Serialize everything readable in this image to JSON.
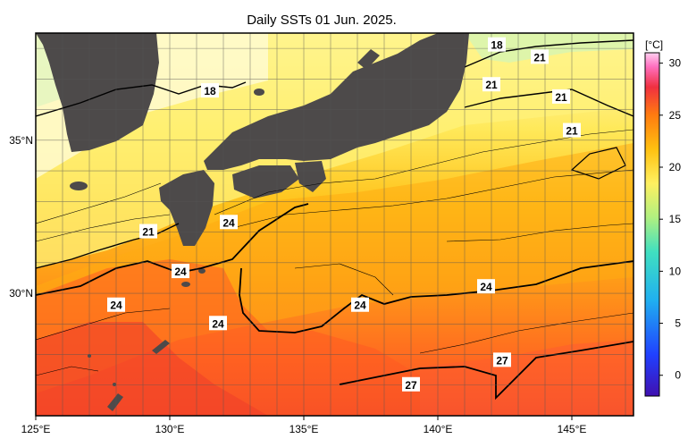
{
  "title": "Daily SSTs 01 Jun. 2025.",
  "colorbar": {
    "unit": "[°C]",
    "min": -2,
    "max": 31,
    "ticks": [
      "30",
      "25",
      "20",
      "15",
      "10",
      "5",
      "0"
    ],
    "tick_values": [
      30,
      25,
      20,
      15,
      10,
      5,
      0
    ]
  },
  "axes": {
    "lon_labels": [
      "125°E",
      "130°E",
      "135°E",
      "140°E",
      "145°E"
    ],
    "lon_values": [
      125,
      130,
      135,
      140,
      145
    ],
    "lat_labels": [
      "35°N",
      "30°N"
    ],
    "lat_values": [
      35,
      30
    ],
    "lon_range": [
      125,
      147.3
    ],
    "lat_range": [
      26,
      38.5
    ]
  },
  "isotherm_labels": [
    {
      "text": "18",
      "lon": 131.5,
      "lat": 36.6
    },
    {
      "text": "18",
      "lon": 142.2,
      "lat": 38.1
    },
    {
      "text": "21",
      "lon": 129.2,
      "lat": 32.0
    },
    {
      "text": "21",
      "lon": 142.0,
      "lat": 36.8
    },
    {
      "text": "21",
      "lon": 143.8,
      "lat": 37.7
    },
    {
      "text": "21",
      "lon": 144.6,
      "lat": 36.4
    },
    {
      "text": "21",
      "lon": 145.0,
      "lat": 35.3
    },
    {
      "text": "24",
      "lon": 128.0,
      "lat": 29.6
    },
    {
      "text": "24",
      "lon": 132.2,
      "lat": 32.3
    },
    {
      "text": "24",
      "lon": 130.4,
      "lat": 30.7
    },
    {
      "text": "24",
      "lon": 131.8,
      "lat": 29.0
    },
    {
      "text": "24",
      "lon": 137.1,
      "lat": 29.6
    },
    {
      "text": "24",
      "lon": 141.8,
      "lat": 30.2
    },
    {
      "text": "27",
      "lon": 139.0,
      "lat": 27.0
    },
    {
      "text": "27",
      "lon": 142.4,
      "lat": 27.8
    }
  ],
  "colors": {
    "land": "#4d4a4a",
    "cold": "#c8f0b0",
    "cool": "#fff8b0",
    "warm": "#ffb000",
    "hot": "#ff6a1a",
    "hotter": "#f03c28"
  }
}
